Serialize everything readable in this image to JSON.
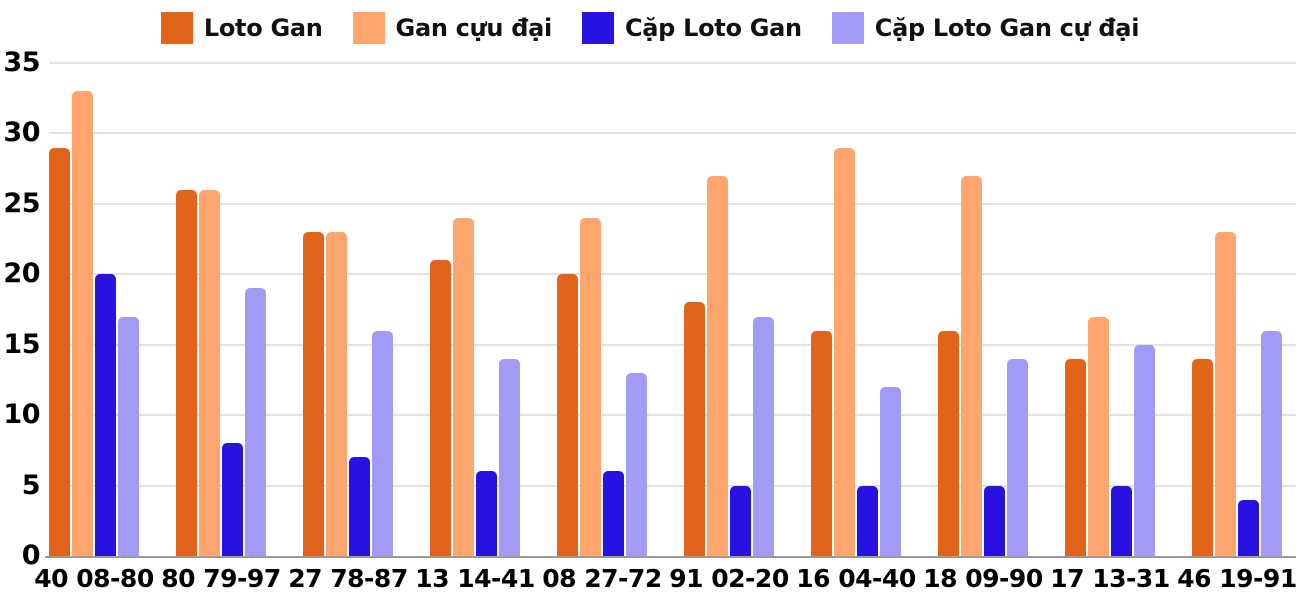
{
  "chart_data": {
    "type": "bar",
    "title": "",
    "xlabel": "",
    "ylabel": "",
    "ylim": [
      0,
      35
    ],
    "yticks": [
      0,
      5,
      10,
      15,
      20,
      25,
      30,
      35
    ],
    "grid": true,
    "legend_position": "top",
    "categories": [
      "40 08-80",
      "80 79-97",
      "27 78-87",
      "13 14-41",
      "08 27-72",
      "91 02-20",
      "16 04-40",
      "18 09-90",
      "17 13-31",
      "46 19-91"
    ],
    "series": [
      {
        "name": "Loto Gan",
        "color": "#E0641A",
        "values": [
          29,
          26,
          23,
          21,
          20,
          18,
          16,
          16,
          14,
          14
        ]
      },
      {
        "name": "Gan cựu đại",
        "color": "#FFA56E",
        "values": [
          33,
          26,
          23,
          24,
          24,
          27,
          29,
          27,
          17,
          23
        ]
      },
      {
        "name": "Cặp Loto Gan",
        "color": "#2812E1",
        "values": [
          20,
          8,
          7,
          6,
          6,
          5,
          5,
          5,
          5,
          4
        ]
      },
      {
        "name": "Cặp Loto Gan cự đại",
        "color": "#A29BF5",
        "values": [
          17,
          19,
          16,
          14,
          13,
          17,
          12,
          14,
          15,
          16
        ]
      }
    ],
    "colors": {
      "gridline": "#e2e2e2",
      "axis": "#9a9a9a",
      "text": "#000000"
    }
  }
}
